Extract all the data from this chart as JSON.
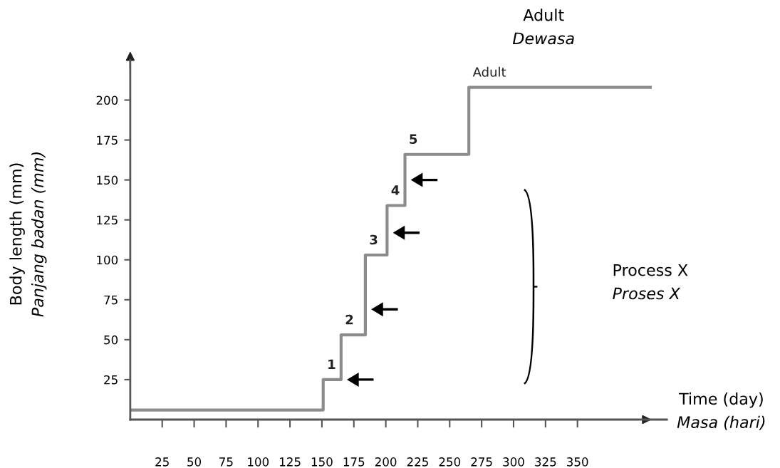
{
  "chart_data": {
    "type": "step",
    "xlabel": "Time (day)\nMasa (hari)",
    "ylabel": "Body length (mm)\nPanjang badan (mm)",
    "series": [
      {
        "color": "#8c8c8c",
        "x": [
          0,
          151,
          165,
          184,
          201,
          215,
          265,
          407
        ],
        "values": [
          6,
          25,
          53,
          103,
          134,
          166,
          208,
          208
        ]
      }
    ],
    "annotations": [
      "1",
      "2",
      "3",
      "4",
      "5",
      "Adult",
      "Adult\nDewasa",
      "Process X\nProses X"
    ],
    "xlim": [
      0,
      420
    ],
    "ylim": [
      0,
      225
    ],
    "xticks": [
      25,
      50,
      75,
      100,
      125,
      150,
      175,
      200,
      225,
      250,
      275,
      300,
      325,
      350
    ],
    "yticks": [
      25,
      50,
      75,
      100,
      125,
      150,
      175,
      200
    ],
    "grid": false,
    "legend": false,
    "line_style": "solid",
    "marker": "none"
  }
}
